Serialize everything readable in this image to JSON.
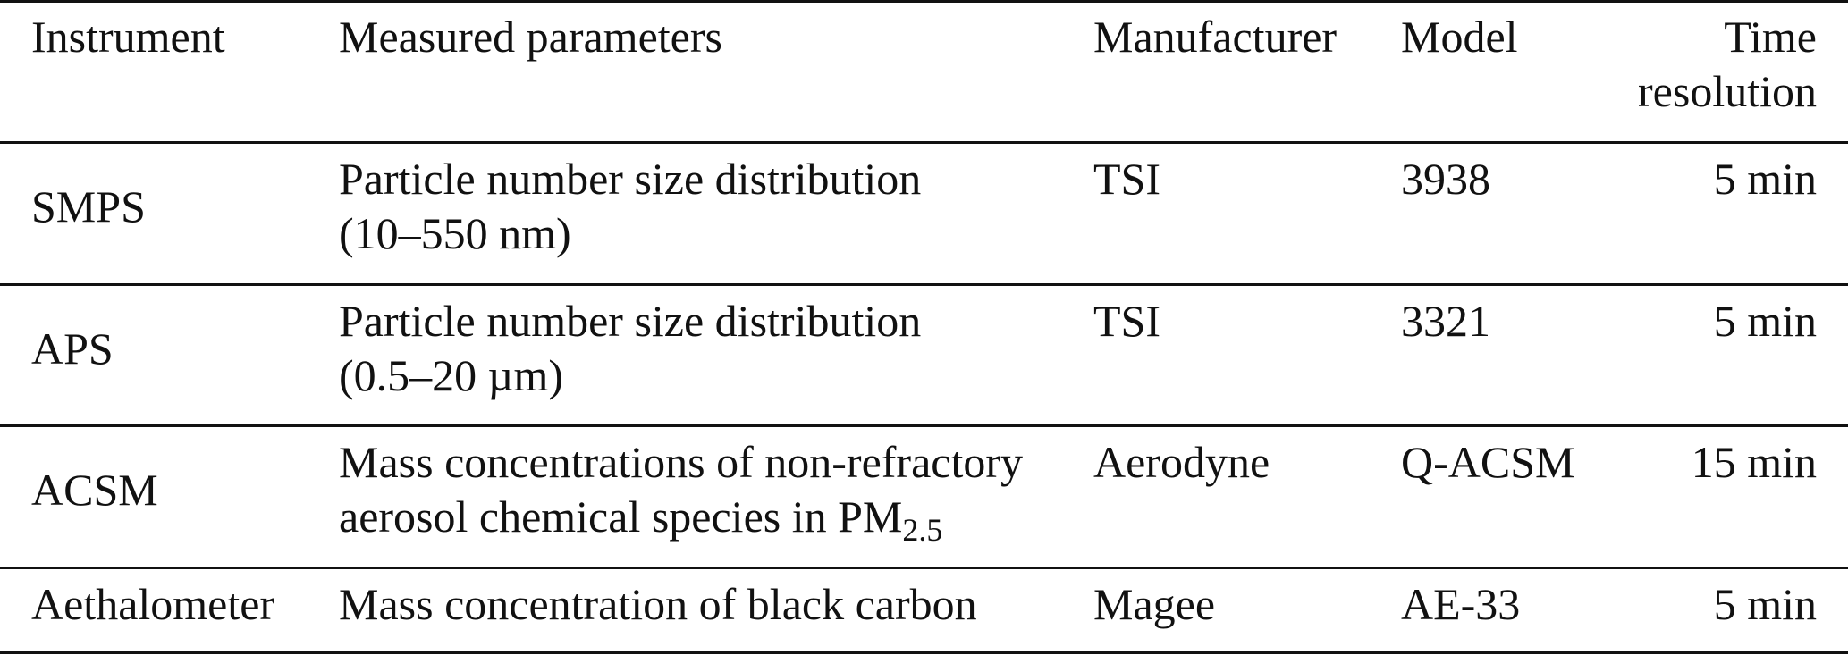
{
  "table": {
    "headers": {
      "instrument": "Instrument",
      "parameters": "Measured parameters",
      "manufacturer": "Manufacturer",
      "model": "Model",
      "time_line1": "Time",
      "time_line2": "resolution"
    },
    "rows": [
      {
        "instrument": "SMPS",
        "param_line1": "Particle number size distribution",
        "param_line2": "(10–550 nm)",
        "manufacturer": "TSI",
        "model": "3938",
        "time": "5 min"
      },
      {
        "instrument": "APS",
        "param_line1": "Particle number size distribution",
        "param_line2": "(0.5–20 µm)",
        "manufacturer": "TSI",
        "model": "3321",
        "time": "5 min"
      },
      {
        "instrument": "ACSM",
        "param_line1": "Mass concentrations of non-refractory",
        "param_line2": "aerosol chemical species in PM",
        "param_line2_sub": "2.5",
        "manufacturer": "Aerodyne",
        "model": "Q-ACSM",
        "time": "15 min"
      },
      {
        "instrument": "Aethalometer",
        "param_line1": "Mass concentration of black carbon",
        "manufacturer": "Magee",
        "model": "AE-33",
        "time": "5 min"
      }
    ]
  }
}
